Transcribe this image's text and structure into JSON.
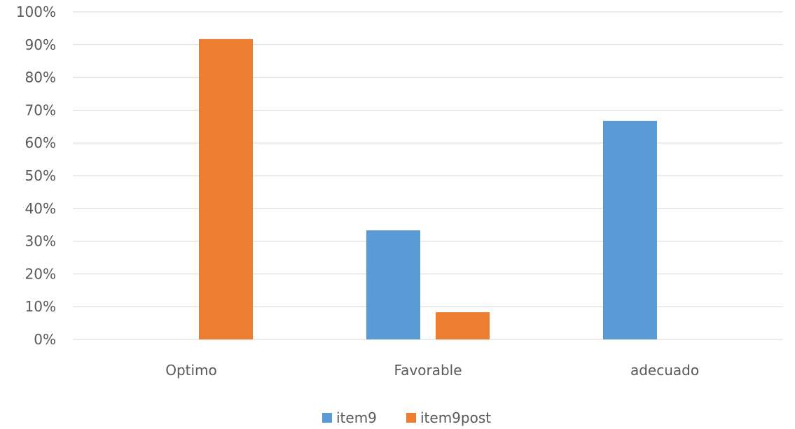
{
  "chart_data": {
    "type": "bar",
    "title": "",
    "xlabel": "",
    "ylabel": "",
    "categories": [
      "Optimo",
      "Favorable",
      "adecuado"
    ],
    "series": [
      {
        "name": "item9",
        "color": "#5b9bd5",
        "values": [
          0,
          33.3,
          66.7
        ]
      },
      {
        "name": "item9post",
        "color": "#ed7d31",
        "values": [
          91.7,
          8.3,
          0
        ]
      }
    ],
    "ylim": [
      0,
      100
    ],
    "yticks": [
      "0%",
      "10%",
      "20%",
      "30%",
      "40%",
      "50%",
      "60%",
      "70%",
      "80%",
      "90%",
      "100%"
    ],
    "grid": true,
    "legend": "bottom"
  }
}
